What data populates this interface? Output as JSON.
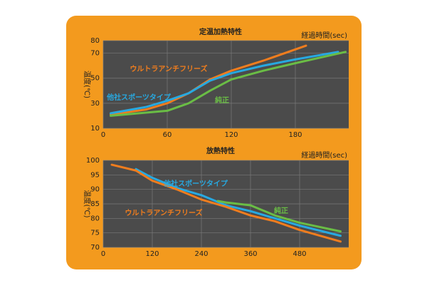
{
  "chart_data": [
    {
      "type": "line",
      "title": "定温加熱特性",
      "x_label": "経過時間(sec)",
      "y_label": "温度(℃)",
      "xlim": [
        0,
        230
      ],
      "xticks": [
        0,
        60,
        120,
        180
      ],
      "ylim": [
        10,
        80
      ],
      "yticks": [
        10,
        30,
        50,
        70,
        80
      ],
      "grid": true,
      "series": [
        {
          "name": "ウルトラアンチフリーズ",
          "color": "#f07d1e",
          "x": [
            7,
            40,
            60,
            80,
            100,
            120,
            150,
            190
          ],
          "values": [
            21,
            25,
            30,
            38,
            49,
            56,
            64,
            76
          ]
        },
        {
          "name": "他社スポーツタイプ",
          "color": "#27a9e1",
          "x": [
            7,
            40,
            60,
            80,
            100,
            120,
            150,
            180,
            220
          ],
          "values": [
            22,
            27,
            32,
            38,
            48,
            54,
            60,
            65,
            71
          ]
        },
        {
          "name": "純正",
          "color": "#6abd45",
          "x": [
            7,
            60,
            80,
            100,
            120,
            150,
            180,
            227
          ],
          "values": [
            20,
            24,
            30,
            40,
            49,
            56,
            62,
            71
          ]
        }
      ]
    },
    {
      "type": "line",
      "title": "放熱特性",
      "x_label": "経過時間(sec)",
      "y_label": "温度(℃)",
      "xlim": [
        0,
        600
      ],
      "xticks": [
        0,
        120,
        240,
        360,
        480
      ],
      "ylim": [
        70,
        100
      ],
      "yticks": [
        70,
        75,
        80,
        85,
        90,
        95,
        100
      ],
      "grid": true,
      "series": [
        {
          "name": "他社スポーツタイプ",
          "color": "#27a9e1",
          "x": [
            80,
            120,
            180,
            240,
            300,
            360,
            420,
            480,
            580
          ],
          "values": [
            97,
            94,
            90.5,
            88,
            84.5,
            82.5,
            80,
            77.5,
            74
          ]
        },
        {
          "name": "ウルトラアンチフリーズ",
          "color": "#f07d1e",
          "x": [
            21,
            80,
            120,
            180,
            240,
            300,
            360,
            420,
            480,
            580
          ],
          "values": [
            98.5,
            96.5,
            93,
            90,
            86.5,
            84,
            81,
            79,
            76,
            72
          ]
        },
        {
          "name": "純正",
          "color": "#6abd45",
          "x": [
            280,
            300,
            360,
            420,
            480,
            580
          ],
          "values": [
            86,
            85.5,
            84.5,
            81,
            78.5,
            75.5
          ]
        }
      ]
    }
  ]
}
